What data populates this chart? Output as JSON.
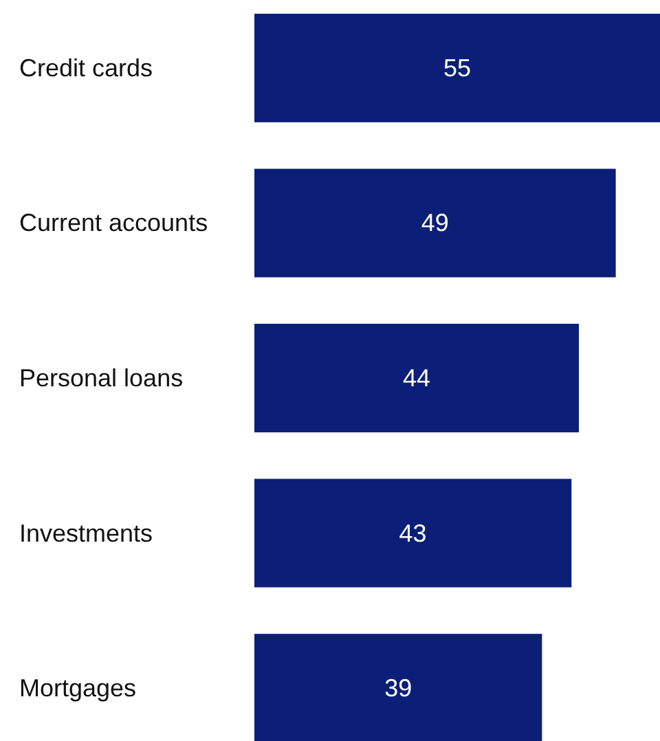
{
  "chart_data": {
    "type": "bar",
    "orientation": "horizontal",
    "categories": [
      "Credit cards",
      "Current accounts",
      "Personal loans",
      "Investments",
      "Mortgages"
    ],
    "values": [
      55,
      49,
      44,
      43,
      39
    ],
    "color": "#0b1f78",
    "data_labels": true
  }
}
